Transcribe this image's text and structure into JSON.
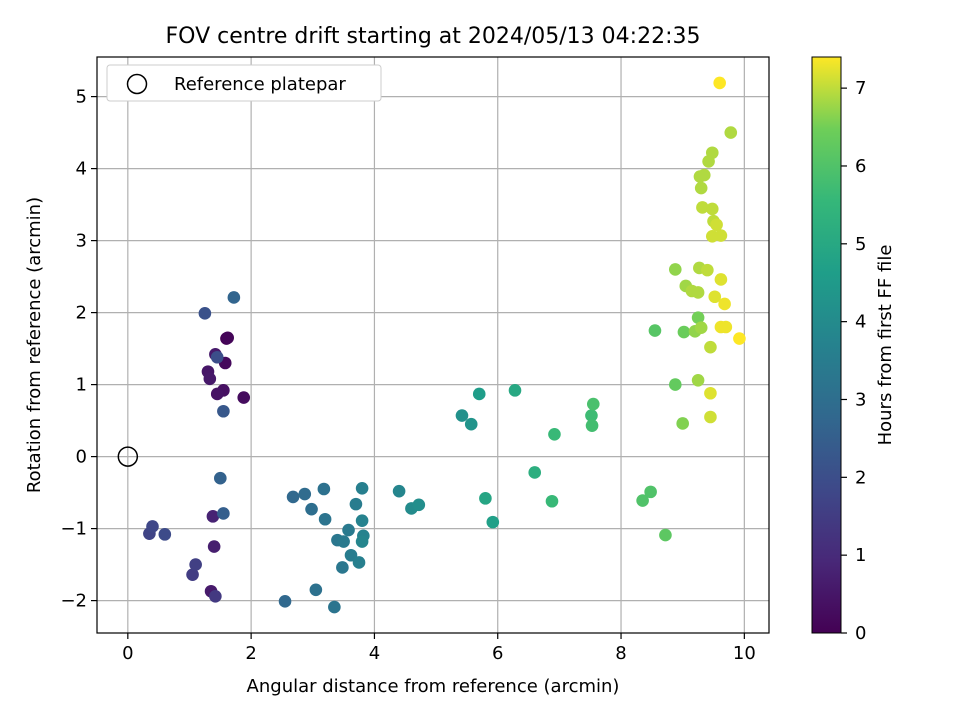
{
  "chart_data": {
    "type": "scatter",
    "title": "FOV centre drift starting at 2024/05/13 04:22:35",
    "xlabel": "Angular distance from reference (arcmin)",
    "ylabel": "Rotation from reference (arcmin)",
    "xlim": [
      -0.5,
      10.4
    ],
    "ylim": [
      -2.45,
      5.55
    ],
    "xticks": [
      0,
      2,
      4,
      6,
      8,
      10
    ],
    "yticks": [
      -2,
      -1,
      0,
      1,
      2,
      3,
      4,
      5
    ],
    "grid": true,
    "legend": {
      "placement": "top-left",
      "entries": [
        "Reference platepar"
      ]
    },
    "reference_point": {
      "x": 0,
      "y": 0
    },
    "colorbar": {
      "label": "Hours from first FF file",
      "colormap": "viridis",
      "range": [
        0,
        7.4
      ],
      "ticks": [
        0,
        1,
        2,
        3,
        4,
        5,
        6,
        7
      ]
    },
    "points": [
      {
        "x": 1.6,
        "y": 1.64,
        "c": 0.0
      },
      {
        "x": 1.62,
        "y": 1.65,
        "c": 0.1
      },
      {
        "x": 1.58,
        "y": 1.3,
        "c": 0.2
      },
      {
        "x": 1.88,
        "y": 0.82,
        "c": 0.25
      },
      {
        "x": 1.55,
        "y": 0.92,
        "c": 0.35
      },
      {
        "x": 1.45,
        "y": 0.87,
        "c": 0.4
      },
      {
        "x": 1.3,
        "y": 1.18,
        "c": 0.5
      },
      {
        "x": 1.33,
        "y": 1.08,
        "c": 0.55
      },
      {
        "x": 1.42,
        "y": 1.42,
        "c": 0.6
      },
      {
        "x": 1.35,
        "y": -1.87,
        "c": 0.6
      },
      {
        "x": 1.4,
        "y": -1.25,
        "c": 0.7
      },
      {
        "x": 1.38,
        "y": -0.83,
        "c": 0.8
      },
      {
        "x": 1.42,
        "y": -1.94,
        "c": 1.4
      },
      {
        "x": 1.05,
        "y": -1.64,
        "c": 1.5
      },
      {
        "x": 1.1,
        "y": -1.5,
        "c": 1.6
      },
      {
        "x": 0.35,
        "y": -1.07,
        "c": 1.7
      },
      {
        "x": 0.4,
        "y": -0.97,
        "c": 1.8
      },
      {
        "x": 0.6,
        "y": -1.08,
        "c": 1.9
      },
      {
        "x": 1.45,
        "y": 1.38,
        "c": 2.0
      },
      {
        "x": 1.25,
        "y": 1.99,
        "c": 2.1
      },
      {
        "x": 1.55,
        "y": 0.63,
        "c": 2.3
      },
      {
        "x": 1.55,
        "y": -0.79,
        "c": 2.5
      },
      {
        "x": 1.5,
        "y": -0.3,
        "c": 2.6
      },
      {
        "x": 1.72,
        "y": 2.21,
        "c": 2.7
      },
      {
        "x": 2.55,
        "y": -2.01,
        "c": 2.8
      },
      {
        "x": 2.68,
        "y": -0.56,
        "c": 2.8
      },
      {
        "x": 2.87,
        "y": -0.52,
        "c": 2.9
      },
      {
        "x": 2.98,
        "y": -0.73,
        "c": 3.0
      },
      {
        "x": 3.05,
        "y": -1.85,
        "c": 3.1
      },
      {
        "x": 3.18,
        "y": -0.45,
        "c": 3.1
      },
      {
        "x": 3.2,
        "y": -0.87,
        "c": 3.2
      },
      {
        "x": 3.35,
        "y": -2.09,
        "c": 3.2
      },
      {
        "x": 3.4,
        "y": -1.16,
        "c": 3.3
      },
      {
        "x": 3.48,
        "y": -1.54,
        "c": 3.3
      },
      {
        "x": 3.5,
        "y": -1.18,
        "c": 3.4
      },
      {
        "x": 3.58,
        "y": -1.02,
        "c": 3.4
      },
      {
        "x": 3.62,
        "y": -1.37,
        "c": 3.5
      },
      {
        "x": 3.7,
        "y": -0.66,
        "c": 3.5
      },
      {
        "x": 3.75,
        "y": -1.47,
        "c": 3.6
      },
      {
        "x": 3.8,
        "y": -0.44,
        "c": 3.6
      },
      {
        "x": 3.8,
        "y": -0.89,
        "c": 3.7
      },
      {
        "x": 3.82,
        "y": -1.1,
        "c": 3.7
      },
      {
        "x": 3.8,
        "y": -1.18,
        "c": 3.8
      },
      {
        "x": 4.4,
        "y": -0.48,
        "c": 3.8
      },
      {
        "x": 4.6,
        "y": -0.72,
        "c": 4.0
      },
      {
        "x": 4.72,
        "y": -0.67,
        "c": 4.1
      },
      {
        "x": 5.42,
        "y": 0.57,
        "c": 4.2
      },
      {
        "x": 5.57,
        "y": 0.45,
        "c": 4.3
      },
      {
        "x": 5.7,
        "y": 0.87,
        "c": 4.6
      },
      {
        "x": 5.8,
        "y": -0.58,
        "c": 4.9
      },
      {
        "x": 5.92,
        "y": -0.91,
        "c": 4.7
      },
      {
        "x": 6.28,
        "y": 0.92,
        "c": 5.0
      },
      {
        "x": 6.6,
        "y": -0.22,
        "c": 5.2
      },
      {
        "x": 6.88,
        "y": -0.62,
        "c": 5.6
      },
      {
        "x": 6.92,
        "y": 0.31,
        "c": 5.6
      },
      {
        "x": 7.52,
        "y": 0.57,
        "c": 5.7
      },
      {
        "x": 7.53,
        "y": 0.43,
        "c": 5.8
      },
      {
        "x": 7.55,
        "y": 0.73,
        "c": 5.9
      },
      {
        "x": 8.35,
        "y": -0.61,
        "c": 6.0
      },
      {
        "x": 8.48,
        "y": -0.49,
        "c": 6.0
      },
      {
        "x": 8.55,
        "y": 1.75,
        "c": 6.1
      },
      {
        "x": 8.72,
        "y": -1.09,
        "c": 6.2
      },
      {
        "x": 8.88,
        "y": 1.0,
        "c": 6.3
      },
      {
        "x": 9.02,
        "y": 1.73,
        "c": 6.4
      },
      {
        "x": 9.25,
        "y": 1.93,
        "c": 6.5
      },
      {
        "x": 9.0,
        "y": 0.46,
        "c": 6.6
      },
      {
        "x": 9.2,
        "y": 1.74,
        "c": 6.7
      },
      {
        "x": 8.88,
        "y": 2.6,
        "c": 6.7
      },
      {
        "x": 9.05,
        "y": 2.37,
        "c": 6.8
      },
      {
        "x": 9.3,
        "y": 1.79,
        "c": 6.8
      },
      {
        "x": 9.25,
        "y": 1.06,
        "c": 6.8
      },
      {
        "x": 9.15,
        "y": 2.3,
        "c": 6.9
      },
      {
        "x": 9.25,
        "y": 2.28,
        "c": 6.9
      },
      {
        "x": 9.27,
        "y": 2.62,
        "c": 6.9
      },
      {
        "x": 9.4,
        "y": 2.59,
        "c": 7.0
      },
      {
        "x": 9.45,
        "y": 1.52,
        "c": 7.0
      },
      {
        "x": 9.28,
        "y": 3.89,
        "c": 6.9
      },
      {
        "x": 9.35,
        "y": 3.91,
        "c": 6.9
      },
      {
        "x": 9.3,
        "y": 3.73,
        "c": 6.9
      },
      {
        "x": 9.42,
        "y": 4.1,
        "c": 6.9
      },
      {
        "x": 9.48,
        "y": 4.22,
        "c": 6.9
      },
      {
        "x": 9.78,
        "y": 4.5,
        "c": 6.9
      },
      {
        "x": 9.32,
        "y": 3.46,
        "c": 7.0
      },
      {
        "x": 9.48,
        "y": 3.44,
        "c": 7.0
      },
      {
        "x": 9.5,
        "y": 3.27,
        "c": 7.0
      },
      {
        "x": 9.55,
        "y": 3.22,
        "c": 7.1
      },
      {
        "x": 9.48,
        "y": 3.06,
        "c": 7.1
      },
      {
        "x": 9.62,
        "y": 3.07,
        "c": 7.1
      },
      {
        "x": 9.45,
        "y": 0.55,
        "c": 7.1
      },
      {
        "x": 9.52,
        "y": 2.22,
        "c": 7.2
      },
      {
        "x": 9.62,
        "y": 2.46,
        "c": 7.2
      },
      {
        "x": 9.45,
        "y": 0.88,
        "c": 7.2
      },
      {
        "x": 9.68,
        "y": 2.12,
        "c": 7.3
      },
      {
        "x": 9.62,
        "y": 1.8,
        "c": 7.3
      },
      {
        "x": 9.7,
        "y": 1.8,
        "c": 7.3
      },
      {
        "x": 9.92,
        "y": 1.64,
        "c": 7.4
      },
      {
        "x": 9.6,
        "y": 5.19,
        "c": 7.4
      }
    ]
  }
}
